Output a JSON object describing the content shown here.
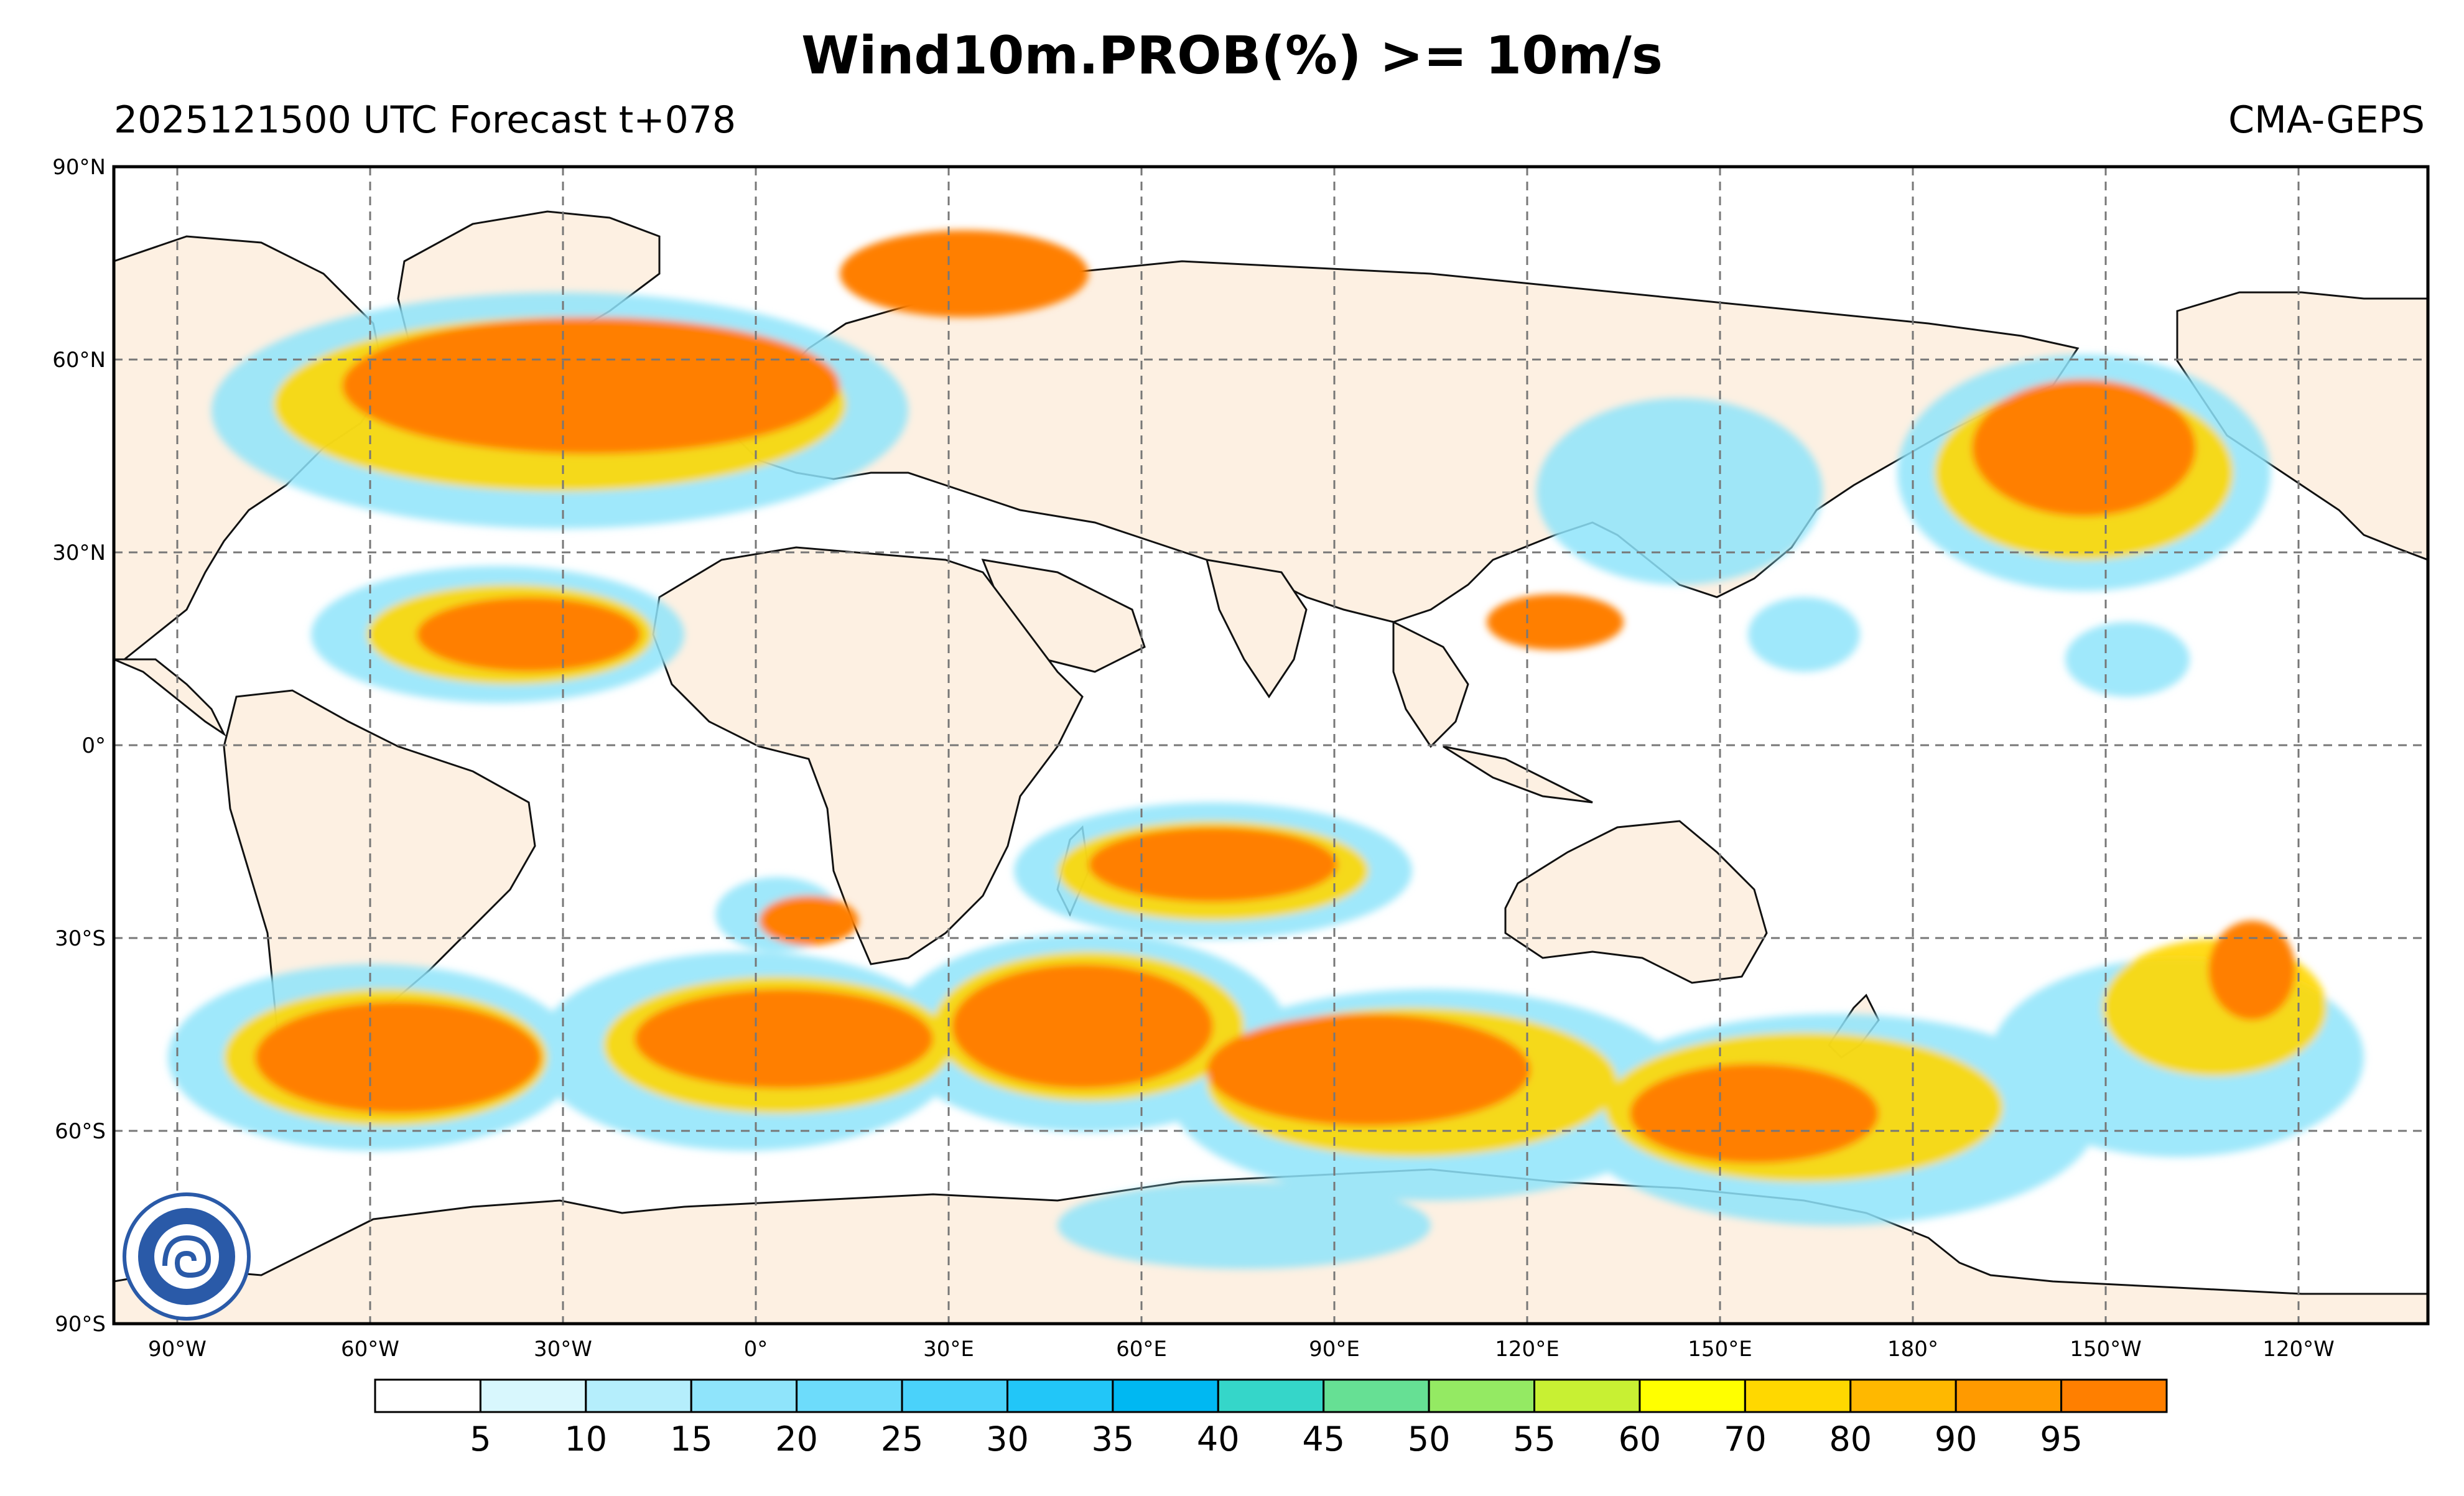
{
  "title": "Wind10m.PROB(%) >= 10m/s",
  "subtitle_left": "2025121500 UTC Forecast t+078",
  "subtitle_right": "CMA-GEPS",
  "lat_labels": [
    "90°N",
    "60°N",
    "30°N",
    "0°",
    "30°S",
    "60°S",
    "90°S"
  ],
  "lon_labels": [
    "90°W",
    "60°W",
    "30°W",
    "0°",
    "30°E",
    "60°E",
    "90°E",
    "120°E",
    "150°E",
    "180°",
    "150°W",
    "120°W"
  ],
  "colorbar": {
    "colors": [
      "#ffffff",
      "#d8f7fd",
      "#b5eefc",
      "#8fe4fb",
      "#6ddcfb",
      "#4ad2fa",
      "#22c6f8",
      "#00b8f2",
      "#35d6c9",
      "#66e094",
      "#94ea63",
      "#c8f033",
      "#ffff00",
      "#ffd800",
      "#ffb800",
      "#ff9a00",
      "#ff7f00"
    ],
    "tick_labels": [
      "5",
      "10",
      "15",
      "20",
      "25",
      "30",
      "35",
      "40",
      "45",
      "50",
      "55",
      "60",
      "70",
      "80",
      "90",
      "95"
    ]
  },
  "palette": {
    "land": "#fdf0e2",
    "ocean": "#ffffff",
    "high_prob": "#ff7f00",
    "grid": "#777777"
  }
}
